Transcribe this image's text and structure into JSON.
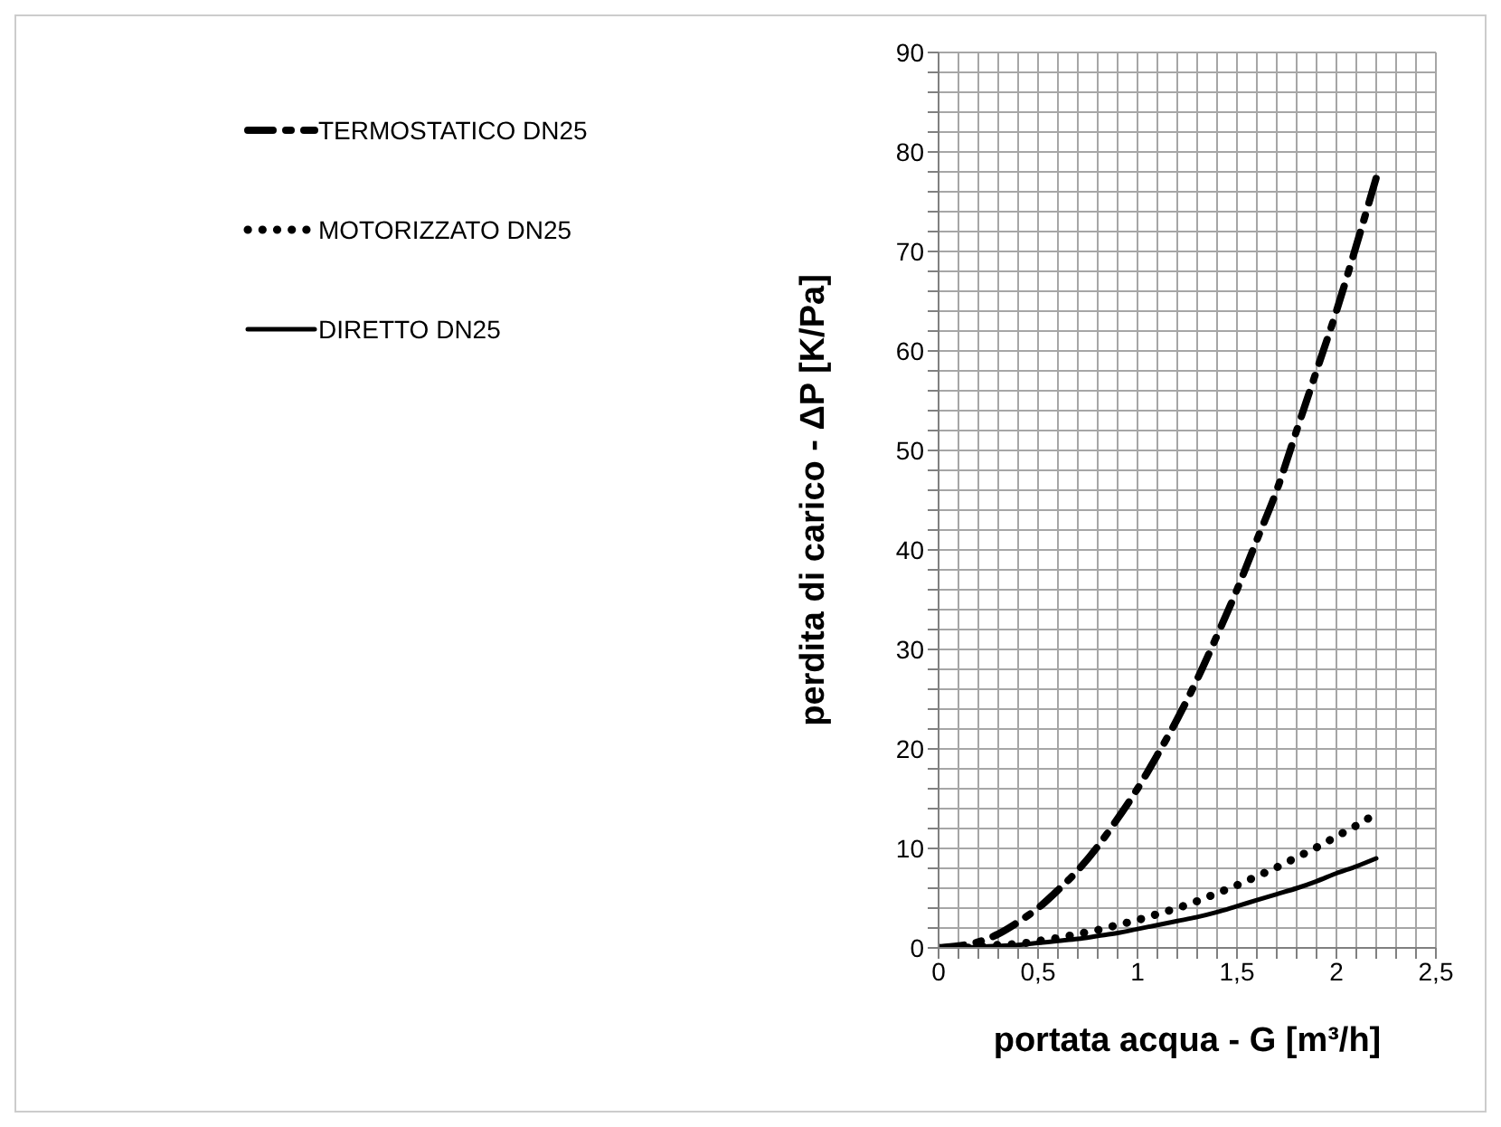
{
  "chart_data": {
    "type": "line",
    "xlabel": "portata acqua     -     G [m³/h]",
    "ylabel": "perdita di carico -      ΔP  [K/Pa]",
    "x": [
      0,
      0.1,
      0.2,
      0.3,
      0.4,
      0.5,
      0.6,
      0.7,
      0.8,
      0.9,
      1,
      1.1,
      1.2,
      1.3,
      1.4,
      1.5,
      1.6,
      1.7,
      1.8,
      1.9,
      2,
      2.1,
      2.2
    ],
    "series": [
      {
        "name": "TERMOSTATICO DN25",
        "color": "#000000",
        "line_style": "dashed",
        "values": [
          0,
          0.2,
          0.6,
          1.4,
          2.6,
          4,
          5.8,
          7.8,
          10.2,
          13,
          16,
          19.4,
          23,
          27,
          31.4,
          36,
          41,
          46,
          52,
          58,
          64,
          70.6,
          77.4
        ]
      },
      {
        "name": "MOTORIZZATO DN25",
        "color": "#000000",
        "line_style": "dotted",
        "values": [
          0,
          0,
          0.1,
          0.3,
          0.4,
          0.7,
          1,
          1.4,
          1.8,
          2.3,
          2.8,
          3.4,
          4,
          4.7,
          5.5,
          6.3,
          7.2,
          8.1,
          9.1,
          10.1,
          11.2,
          12.3,
          13.5
        ]
      },
      {
        "name": "DIRETTO DN25",
        "color": "#000000",
        "line_style": "solid",
        "values": [
          0,
          0,
          0.1,
          0.2,
          0.3,
          0.5,
          0.7,
          0.9,
          1.2,
          1.5,
          1.9,
          2.3,
          2.7,
          3.1,
          3.6,
          4.2,
          4.8,
          5.4,
          6,
          6.7,
          7.5,
          8.2,
          9
        ]
      }
    ],
    "xlim": [
      0,
      2.5
    ],
    "xticks": [
      0,
      {
        "value": 0.1,
        "label": null
      },
      {
        "value": 0.2,
        "label": null
      },
      {
        "value": 0.3,
        "label": null
      },
      {
        "value": 0.4,
        "label": null
      },
      {
        "value": 0.5,
        "label": "0,5"
      },
      {
        "value": 0.6,
        "label": null
      },
      {
        "value": 0.7,
        "label": null
      },
      {
        "value": 0.8,
        "label": null
      },
      {
        "value": 0.9,
        "label": null
      },
      1,
      {
        "value": 1.1,
        "label": null
      },
      {
        "value": 1.2,
        "label": null
      },
      {
        "value": 1.3,
        "label": null
      },
      {
        "value": 1.4,
        "label": null
      },
      {
        "value": 1.5,
        "label": "1,5"
      },
      {
        "value": 1.6,
        "label": null
      },
      {
        "value": 1.7,
        "label": null
      },
      {
        "value": 1.8,
        "label": null
      },
      {
        "value": 1.9,
        "label": null
      },
      2,
      {
        "value": 2.1,
        "label": null
      },
      {
        "value": 2.2,
        "label": null
      },
      {
        "value": 2.3,
        "label": null
      },
      {
        "value": 2.4,
        "label": null
      },
      {
        "value": 2.5,
        "label": "2,5"
      }
    ],
    "ylim": [
      0,
      90
    ],
    "yticks": [
      0,
      {
        "value": 2,
        "label": null
      },
      {
        "value": 4,
        "label": null
      },
      {
        "value": 6,
        "label": null
      },
      {
        "value": 8,
        "label": null
      },
      10,
      {
        "value": 12,
        "label": null
      },
      {
        "value": 14,
        "label": null
      },
      {
        "value": 16,
        "label": null
      },
      {
        "value": 18,
        "label": null
      },
      20,
      {
        "value": 22,
        "label": null
      },
      {
        "value": 24,
        "label": null
      },
      {
        "value": 26,
        "label": null
      },
      {
        "value": 28,
        "label": null
      },
      30,
      {
        "value": 32,
        "label": null
      },
      {
        "value": 34,
        "label": null
      },
      {
        "value": 36,
        "label": null
      },
      {
        "value": 38,
        "label": null
      },
      40,
      {
        "value": 42,
        "label": null
      },
      {
        "value": 44,
        "label": null
      },
      {
        "value": 46,
        "label": null
      },
      {
        "value": 48,
        "label": null
      },
      50,
      {
        "value": 52,
        "label": null
      },
      {
        "value": 54,
        "label": null
      },
      {
        "value": 56,
        "label": null
      },
      {
        "value": 58,
        "label": null
      },
      60,
      {
        "value": 62,
        "label": null
      },
      {
        "value": 64,
        "label": null
      },
      {
        "value": 66,
        "label": null
      },
      {
        "value": 68,
        "label": null
      },
      70,
      {
        "value": 72,
        "label": null
      },
      {
        "value": 74,
        "label": null
      },
      {
        "value": 76,
        "label": null
      },
      {
        "value": 78,
        "label": null
      },
      80,
      {
        "value": 82,
        "label": null
      },
      {
        "value": 84,
        "label": null
      },
      {
        "value": 86,
        "label": null
      },
      {
        "value": 88,
        "label": null
      },
      90
    ],
    "grid": true,
    "legend": "top left",
    "marker": "none"
  }
}
